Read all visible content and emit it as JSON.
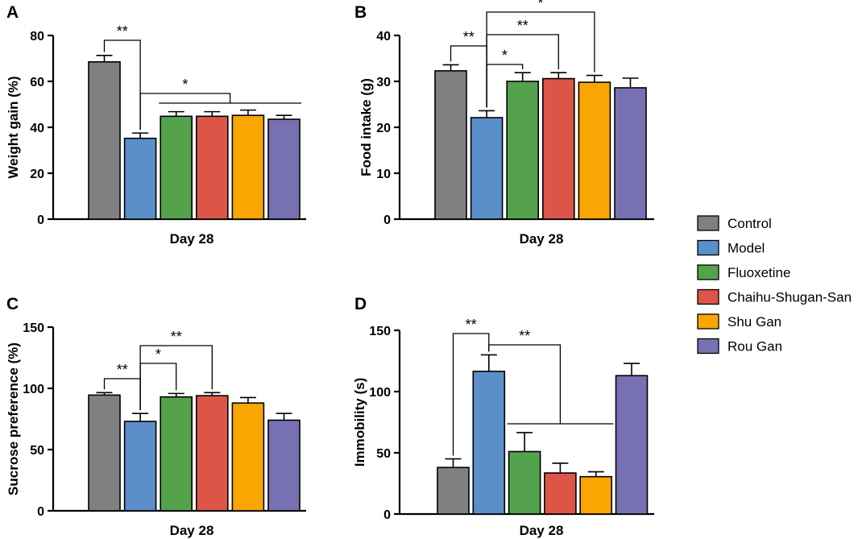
{
  "series_colors": {
    "Control": "#808080",
    "Model": "#5b8fc9",
    "Fluoxetine": "#55a24c",
    "Chaihu-Shugan-San": "#dd5547",
    "Shu Gan": "#f9a602",
    "Rou Gan": "#7771b3"
  },
  "legend": {
    "items": [
      {
        "label": "Control",
        "color": "#808080"
      },
      {
        "label": "Model",
        "color": "#5b8fc9"
      },
      {
        "label": "Fluoxetine",
        "color": "#55a24c"
      },
      {
        "label": "Chaihu-Shugan-San",
        "color": "#dd5547"
      },
      {
        "label": "Shu Gan",
        "color": "#f9a602"
      },
      {
        "label": "Rou Gan",
        "color": "#7771b3"
      }
    ]
  },
  "chart_data": [
    {
      "panel": "A",
      "type": "bar",
      "title": "",
      "xlabel": "Day 28",
      "ylabel": "Weight gain (%)",
      "ylim": [
        0,
        80
      ],
      "yticks": [
        0,
        20,
        40,
        60,
        80
      ],
      "categories": [
        "Control",
        "Model",
        "Fluoxetine",
        "Chaihu-Shugan-San",
        "Shu Gan",
        "Rou Gan"
      ],
      "values": [
        68.5,
        35.2,
        44.8,
        44.8,
        45.2,
        43.5
      ],
      "errors": [
        2.8,
        2.3,
        2.0,
        2.0,
        2.3,
        1.7
      ],
      "significance": [
        {
          "from": 0,
          "to": [
            1
          ],
          "label": "**"
        },
        {
          "from": 1,
          "to": [
            2,
            3,
            4,
            5
          ],
          "label": "*"
        }
      ]
    },
    {
      "panel": "B",
      "type": "bar",
      "title": "",
      "xlabel": "Day 28",
      "ylabel": "Food intake (g)",
      "ylim": [
        0,
        40
      ],
      "yticks": [
        0,
        10,
        20,
        30,
        40
      ],
      "categories": [
        "Control",
        "Model",
        "Fluoxetine",
        "Chaihu-Shugan-San",
        "Shu Gan",
        "Rou Gan"
      ],
      "values": [
        32.3,
        22.1,
        30.0,
        30.6,
        29.8,
        28.6
      ],
      "errors": [
        1.3,
        1.5,
        1.9,
        1.3,
        1.5,
        2.1
      ],
      "significance": [
        {
          "from": 1,
          "to": [
            0
          ],
          "label": "**"
        },
        {
          "from": 1,
          "to": [
            2
          ],
          "label": "*"
        },
        {
          "from": 1,
          "to": [
            3
          ],
          "label": "**"
        },
        {
          "from": 1,
          "to": [
            4
          ],
          "label": "*"
        }
      ]
    },
    {
      "panel": "C",
      "type": "bar",
      "title": "",
      "xlabel": "Day 28",
      "ylabel": "Sucrose preference (%)",
      "ylim": [
        0,
        150
      ],
      "yticks": [
        0,
        50,
        100,
        150
      ],
      "categories": [
        "Control",
        "Model",
        "Fluoxetine",
        "Chaihu-Shugan-San",
        "Shu Gan",
        "Rou Gan"
      ],
      "values": [
        94.5,
        73.0,
        93.0,
        94.0,
        88.0,
        74.0
      ],
      "errors": [
        2.0,
        6.5,
        2.8,
        2.5,
        4.5,
        5.5
      ],
      "significance": [
        {
          "from": 1,
          "to": [
            0
          ],
          "label": "**"
        },
        {
          "from": 1,
          "to": [
            2
          ],
          "label": "*"
        },
        {
          "from": 1,
          "to": [
            3
          ],
          "label": "**"
        }
      ]
    },
    {
      "panel": "D",
      "type": "bar",
      "title": "",
      "xlabel": "Day 28",
      "ylabel": "Immobility (s)",
      "ylim": [
        0,
        150
      ],
      "yticks": [
        0,
        50,
        100,
        150
      ],
      "categories": [
        "Control",
        "Model",
        "Fluoxetine",
        "Chaihu-Shugan-San",
        "Shu Gan",
        "Rou Gan"
      ],
      "values": [
        38.0,
        116.5,
        51.0,
        33.5,
        30.5,
        113.0
      ],
      "errors": [
        7.0,
        13.5,
        15.5,
        8.0,
        4.0,
        10.0
      ],
      "significance": [
        {
          "from": 1,
          "to": [
            0
          ],
          "label": "**"
        },
        {
          "from": 1,
          "to": [
            2,
            3,
            4
          ],
          "label": "**"
        }
      ]
    }
  ]
}
